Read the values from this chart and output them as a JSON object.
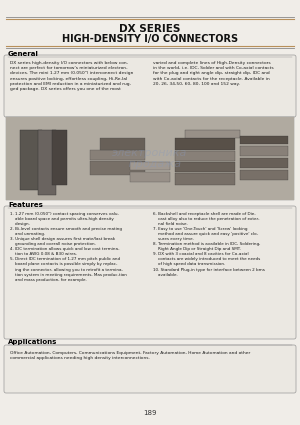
{
  "title_line1": "DX SERIES",
  "title_line2": "HIGH-DENSITY I/O CONNECTORS",
  "page_bg": "#f0ede8",
  "section_general": "General",
  "general_text_left": "DX series high-density I/O connectors with below con-\nnect are perfect for tomorrow's miniaturized electron-\ndevices. The mini 1.27 mm (0.050\") interconnect design\nensures positive locking, effortless coupling, Hi-Re-Ial\nprotection and EMI reduction in a miniaturized and rug-\nged package. DX series offers you one of the most",
  "general_text_right": "varied and complete lines of High-Density connectors\nin the world, i.e. IDC, Solder and with Co-axial contacts\nfor the plug and right angle dip, straight dip, IDC and\nwith Co-axial contacts for the receptacle. Available in\n20, 26, 34,50, 60, 80, 100 and 152 way.",
  "section_features": "Features",
  "features_left": "1. 1.27 mm (0.050\") contact spacing conserves valu-\n    able board space and permits ultra-high density\n    design.\n2. Bi-level contacts ensure smooth and precise mating\n    and unmating.\n3. Unique shell design assures first mate/last break\n    grounding and overall noise protection.\n4. IDC termination allows quick and low cost termina-\n    tion to AWG 0.08 & B30 wires.\n5. Direct IDC termination of 1.27 mm pitch public and\n    board plane contacts is possible simply by replac-\n    ing the connector, allowing you to retrofit a termina-\n    tion system in meeting requirements, Mas produc-tion\n    and mass production, for example.",
  "features_right": "6. Backshell and receptacle shell are made of Die-\n    cast alloy also to reduce the penetration of exter-\n    nal field noise.\n7. Easy to use 'One-Touch' and 'Screw' looking\n    method and assure quick and easy 'positive' clo-\n    sures every time.\n8. Termination method is available in IDC, Soldering,\n    Right Angle Dip or Straight Dip and SMT.\n9. DX with 3 coaxial and 8 cavities for Co-axial\n    contacts are widely introduced to meet the needs\n    of high speed data transmission.\n10. Standard Plug-in type for interface between 2 bms\n    available.",
  "section_applications": "Applications",
  "applications_text": "Office Automation, Computers, Communications Equipment, Factory Automation, Home Automation and other\ncommercial applications needing high density interconnections.",
  "page_number": "189",
  "title_color": "#111111",
  "section_header_color": "#000000",
  "box_border_color": "#999999",
  "line_color_gold": "#b8905a",
  "line_color_gray": "#888888"
}
